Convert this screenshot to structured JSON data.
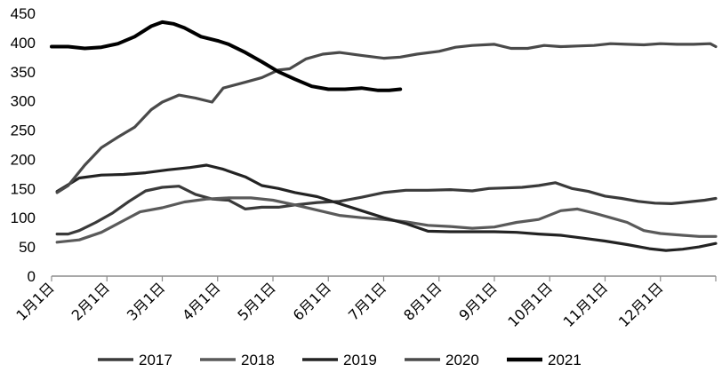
{
  "chart_data": {
    "type": "line",
    "title": "",
    "xlabel": "",
    "ylabel": "",
    "ylim": [
      0,
      450
    ],
    "yticks": [
      0,
      50,
      100,
      150,
      200,
      250,
      300,
      350,
      400,
      450
    ],
    "x_range": [
      0,
      12
    ],
    "grid": false,
    "legend_position": "bottom",
    "categories": [
      "1月1日",
      "2月1日",
      "3月1日",
      "4月1日",
      "5月1日",
      "6月1日",
      "7月1日",
      "8月1日",
      "9月1日",
      "10月1日",
      "11月1日",
      "12月1日"
    ],
    "series": [
      {
        "name": "2017",
        "color": "#3a3a3a",
        "points": [
          [
            0.1,
            72
          ],
          [
            0.3,
            72
          ],
          [
            0.5,
            78
          ],
          [
            0.8,
            92
          ],
          [
            1.1,
            108
          ],
          [
            1.4,
            128
          ],
          [
            1.7,
            146
          ],
          [
            2.0,
            152
          ],
          [
            2.3,
            154
          ],
          [
            2.6,
            140
          ],
          [
            2.9,
            132
          ],
          [
            3.2,
            130
          ],
          [
            3.5,
            115
          ],
          [
            3.8,
            118
          ],
          [
            4.1,
            118
          ],
          [
            4.4,
            122
          ],
          [
            4.8,
            126
          ],
          [
            5.2,
            128
          ],
          [
            5.6,
            135
          ],
          [
            6.0,
            143
          ],
          [
            6.4,
            147
          ],
          [
            6.8,
            147
          ],
          [
            7.2,
            148
          ],
          [
            7.6,
            146
          ],
          [
            7.9,
            150
          ],
          [
            8.2,
            151
          ],
          [
            8.5,
            152
          ],
          [
            8.8,
            155
          ],
          [
            9.1,
            160
          ],
          [
            9.4,
            150
          ],
          [
            9.7,
            145
          ],
          [
            10.0,
            137
          ],
          [
            10.3,
            133
          ],
          [
            10.6,
            128
          ],
          [
            10.9,
            125
          ],
          [
            11.2,
            124
          ],
          [
            11.5,
            127
          ],
          [
            11.8,
            130
          ],
          [
            12.0,
            133
          ]
        ]
      },
      {
        "name": "2018",
        "color": "#5a5a5a",
        "points": [
          [
            0.1,
            58
          ],
          [
            0.5,
            62
          ],
          [
            0.9,
            75
          ],
          [
            1.3,
            95
          ],
          [
            1.6,
            110
          ],
          [
            2.0,
            117
          ],
          [
            2.4,
            127
          ],
          [
            2.8,
            132
          ],
          [
            3.2,
            134
          ],
          [
            3.6,
            134
          ],
          [
            4.0,
            130
          ],
          [
            4.4,
            122
          ],
          [
            4.8,
            113
          ],
          [
            5.2,
            104
          ],
          [
            5.6,
            100
          ],
          [
            6.0,
            97
          ],
          [
            6.4,
            93
          ],
          [
            6.8,
            87
          ],
          [
            7.2,
            85
          ],
          [
            7.6,
            82
          ],
          [
            8.0,
            84
          ],
          [
            8.4,
            92
          ],
          [
            8.8,
            97
          ],
          [
            9.2,
            112
          ],
          [
            9.5,
            115
          ],
          [
            9.8,
            108
          ],
          [
            10.1,
            100
          ],
          [
            10.4,
            92
          ],
          [
            10.7,
            78
          ],
          [
            11.0,
            73
          ],
          [
            11.4,
            70
          ],
          [
            11.7,
            68
          ],
          [
            12.0,
            68
          ]
        ]
      },
      {
        "name": "2019",
        "color": "#232323",
        "points": [
          [
            0.1,
            145
          ],
          [
            0.5,
            168
          ],
          [
            0.9,
            173
          ],
          [
            1.3,
            174
          ],
          [
            1.7,
            177
          ],
          [
            2.1,
            182
          ],
          [
            2.5,
            186
          ],
          [
            2.8,
            190
          ],
          [
            3.1,
            183
          ],
          [
            3.5,
            170
          ],
          [
            3.8,
            155
          ],
          [
            4.1,
            150
          ],
          [
            4.4,
            143
          ],
          [
            4.8,
            136
          ],
          [
            5.2,
            124
          ],
          [
            5.6,
            112
          ],
          [
            6.0,
            100
          ],
          [
            6.4,
            90
          ],
          [
            6.8,
            77
          ],
          [
            7.2,
            76
          ],
          [
            7.6,
            76
          ],
          [
            8.0,
            76
          ],
          [
            8.4,
            75
          ],
          [
            8.8,
            72
          ],
          [
            9.2,
            70
          ],
          [
            9.6,
            65
          ],
          [
            10.0,
            60
          ],
          [
            10.4,
            54
          ],
          [
            10.8,
            47
          ],
          [
            11.1,
            44
          ],
          [
            11.4,
            46
          ],
          [
            11.7,
            50
          ],
          [
            12.0,
            56
          ]
        ]
      },
      {
        "name": "2020",
        "color": "#4a4a4a",
        "points": [
          [
            0.1,
            143
          ],
          [
            0.3,
            155
          ],
          [
            0.6,
            190
          ],
          [
            0.9,
            220
          ],
          [
            1.2,
            238
          ],
          [
            1.5,
            255
          ],
          [
            1.8,
            285
          ],
          [
            2.0,
            298
          ],
          [
            2.3,
            310
          ],
          [
            2.6,
            305
          ],
          [
            2.9,
            298
          ],
          [
            3.1,
            322
          ],
          [
            3.5,
            332
          ],
          [
            3.8,
            340
          ],
          [
            4.1,
            353
          ],
          [
            4.3,
            355
          ],
          [
            4.6,
            372
          ],
          [
            4.9,
            380
          ],
          [
            5.2,
            383
          ],
          [
            5.6,
            378
          ],
          [
            6.0,
            373
          ],
          [
            6.3,
            375
          ],
          [
            6.6,
            380
          ],
          [
            7.0,
            385
          ],
          [
            7.3,
            392
          ],
          [
            7.6,
            395
          ],
          [
            8.0,
            397
          ],
          [
            8.3,
            390
          ],
          [
            8.6,
            390
          ],
          [
            8.9,
            395
          ],
          [
            9.2,
            393
          ],
          [
            9.5,
            394
          ],
          [
            9.8,
            395
          ],
          [
            10.1,
            398
          ],
          [
            10.4,
            397
          ],
          [
            10.7,
            396
          ],
          [
            11.0,
            398
          ],
          [
            11.3,
            397
          ],
          [
            11.6,
            397
          ],
          [
            11.9,
            398
          ],
          [
            12.0,
            393
          ]
        ]
      },
      {
        "name": "2021",
        "color": "#000000",
        "points": [
          [
            0.0,
            393
          ],
          [
            0.3,
            393
          ],
          [
            0.6,
            390
          ],
          [
            0.9,
            392
          ],
          [
            1.2,
            398
          ],
          [
            1.5,
            410
          ],
          [
            1.8,
            428
          ],
          [
            2.0,
            435
          ],
          [
            2.2,
            432
          ],
          [
            2.4,
            425
          ],
          [
            2.7,
            410
          ],
          [
            3.0,
            403
          ],
          [
            3.2,
            397
          ],
          [
            3.5,
            383
          ],
          [
            3.8,
            367
          ],
          [
            4.1,
            350
          ],
          [
            4.4,
            337
          ],
          [
            4.7,
            325
          ],
          [
            5.0,
            320
          ],
          [
            5.3,
            320
          ],
          [
            5.6,
            322
          ],
          [
            5.9,
            318
          ],
          [
            6.1,
            318
          ],
          [
            6.3,
            320
          ]
        ]
      }
    ]
  },
  "legend": [
    {
      "label": "2017",
      "color": "#3a3a3a"
    },
    {
      "label": "2018",
      "color": "#5a5a5a"
    },
    {
      "label": "2019",
      "color": "#232323"
    },
    {
      "label": "2020",
      "color": "#4a4a4a"
    },
    {
      "label": "2021",
      "color": "#000000"
    }
  ]
}
